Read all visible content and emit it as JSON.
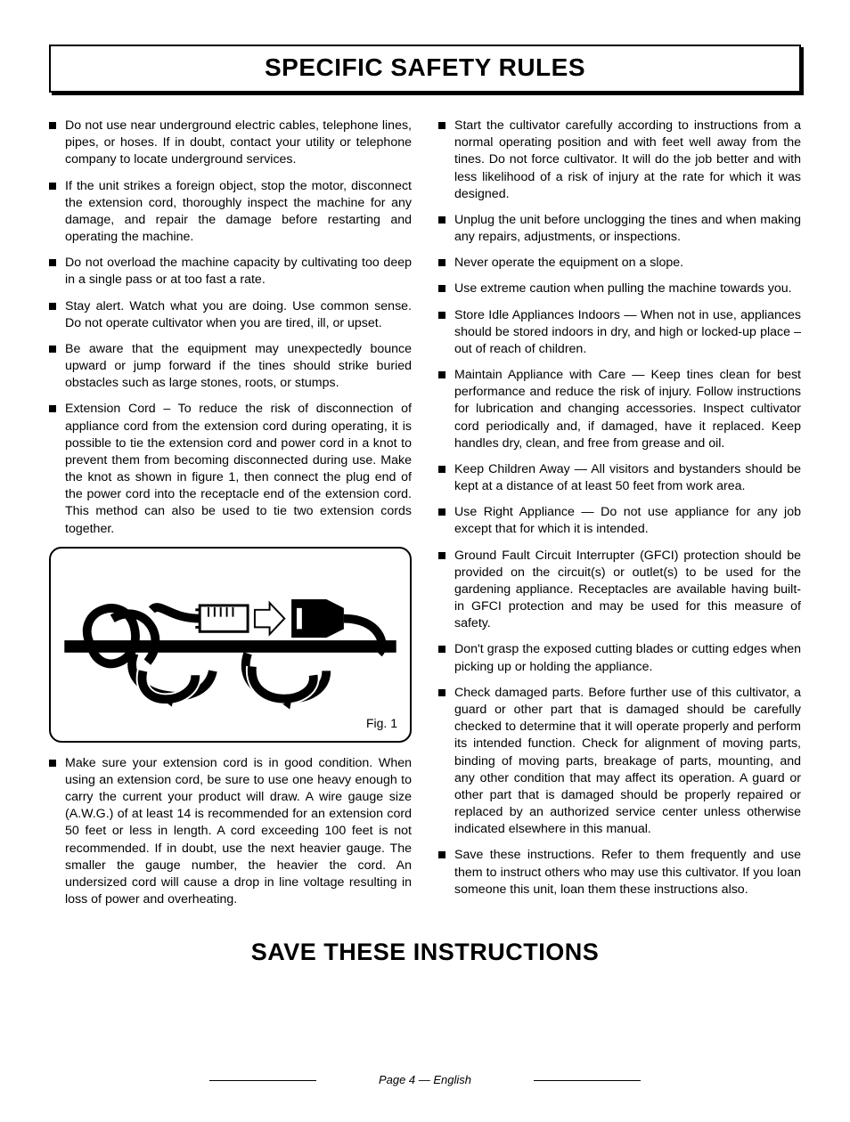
{
  "title": "SPECIFIC SAFETY RULES",
  "left_bullets": [
    "Do not use near underground electric cables, telephone lines, pipes, or hoses. If in doubt, contact your utility or telephone company to locate underground services.",
    "If the unit strikes a foreign object, stop the motor, disconnect the extension cord, thoroughly inspect the machine for any damage, and repair the damage before restarting and operating the machine.",
    "Do not overload the machine capacity by cultivating too deep in a single pass or at too fast a rate.",
    "Stay alert. Watch what you are doing. Use common sense. Do not operate cultivator when you are tired, ill, or upset.",
    "Be aware that the equipment may unexpectedly bounce upward or jump forward if the tines should strike buried obstacles such as large stones, roots, or stumps.",
    "Extension Cord – To reduce the risk of disconnection of appliance cord from the extension cord during operating, it is possible to tie the extension cord and power cord in a knot to prevent them from becoming disconnected during use. Make the knot as shown in figure 1, then connect the plug end of the power cord into the receptacle end of the extension cord. This method can also be used to tie two extension cords together."
  ],
  "left_bullets_after_fig": [
    "Make sure your extension cord is in good condition. When using an extension cord, be sure to use one heavy enough to carry the current your product will draw. A wire gauge size (A.W.G.) of at least 14 is recommended for an extension cord 50 feet or less in length. A cord exceeding 100 feet is not recommended. If in doubt, use the next heavier gauge. The smaller the gauge number, the heavier the cord. An undersized cord will cause a drop in line voltage resulting in loss of power and overheating."
  ],
  "right_bullets": [
    "Start the cultivator carefully according to instructions from a normal operating position and with feet well away from the tines. Do not force cultivator. It will do the job better and with less likelihood of a risk of injury at the rate for which it was designed.",
    "Unplug the unit before unclogging the tines and when making any repairs, adjustments, or inspections.",
    "Never operate the equipment on a slope.",
    "Use extreme caution when pulling the machine towards you.",
    "Store Idle Appliances Indoors — When not in use, appliances should be stored indoors in dry, and high or locked-up place – out of reach of children.",
    "Maintain Appliance with Care — Keep tines clean for best performance and reduce the risk of injury. Follow instructions for lubrication and changing accessories. Inspect cultivator cord periodically and, if damaged, have it replaced. Keep handles dry, clean, and free from grease and oil.",
    "Keep Children Away — All visitors and bystanders should be kept at a distance of at least 50 feet from work area.",
    "Use Right Appliance — Do not use appliance for any job except that for which it is intended.",
    "Ground Fault Circuit Interrupter (GFCI) protection should be provided on the circuit(s) or outlet(s) to be used for the gardening appliance. Receptacles are available having built-in GFCI protection and may be used for this measure of safety.",
    "Don't grasp the exposed cutting blades or cutting edges when picking up or holding the appliance.",
    "Check damaged parts. Before further use of this cultivator, a guard or other part that is damaged should be carefully checked to determine that it will operate properly and perform its intended function. Check for alignment of moving parts, binding of moving parts, breakage of parts, mounting, and any other condition that may affect its operation. A guard or other part that is damaged should be properly repaired or replaced by an authorized service center unless otherwise indicated elsewhere in this manual.",
    "Save these instructions. Refer to them frequently and use them to instruct others who may use this cultivator. If you loan someone this unit, loan them these instructions also."
  ],
  "figure_label": "Fig. 1",
  "save_heading": "SAVE THESE INSTRUCTIONS",
  "footer": "Page 4 — English",
  "style": {
    "title_fontsize": 28,
    "body_fontsize": 14.2,
    "save_fontsize": 27,
    "footer_fontsize": 13,
    "text_color": "#000000",
    "background_color": "#ffffff",
    "bullet_color": "#000000",
    "border_color": "#000000",
    "figure_border_radius": 14
  }
}
